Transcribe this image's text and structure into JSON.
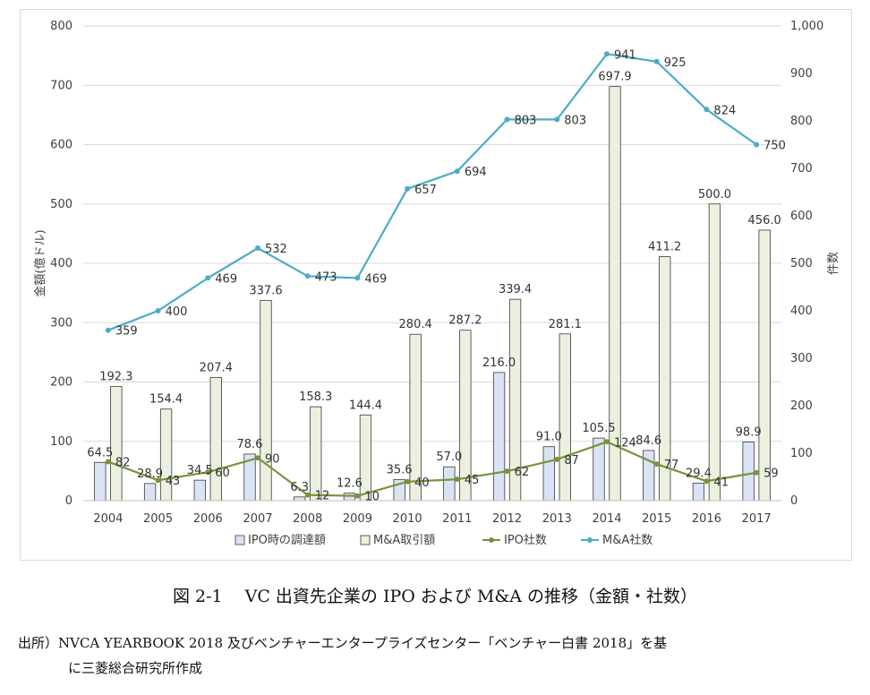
{
  "chart_data": {
    "type": "bar",
    "categories": [
      "2004",
      "2005",
      "2006",
      "2007",
      "2008",
      "2009",
      "2010",
      "2011",
      "2012",
      "2013",
      "2014",
      "2015",
      "2016",
      "2017"
    ],
    "series": [
      {
        "name": "IPO時の調達額",
        "kind": "bar",
        "axis": "left",
        "color": "#dae3f3",
        "values": [
          64.5,
          28.9,
          34.5,
          78.6,
          6.3,
          12.6,
          35.6,
          57.0,
          216.0,
          91.0,
          105.5,
          84.6,
          29.4,
          98.9
        ],
        "labels": [
          "64.5",
          "28.9",
          "34.5",
          "78.6",
          "6.3",
          "12.6",
          "35.6",
          "57.0",
          "216.0",
          "91.0",
          "105.5",
          "84.6",
          "29.4",
          "98.9"
        ]
      },
      {
        "name": "M&A取引額",
        "kind": "bar",
        "axis": "left",
        "color": "#ebf1de",
        "values": [
          192.3,
          154.4,
          207.4,
          337.6,
          158.3,
          144.4,
          280.4,
          287.2,
          339.4,
          281.1,
          697.9,
          411.2,
          500.0,
          456.0
        ],
        "labels": [
          "192.3",
          "154.4",
          "207.4",
          "337.6",
          "158.3",
          "144.4",
          "280.4",
          "287.2",
          "339.4",
          "281.1",
          "697.9",
          "411.2",
          "500.0",
          "456.0"
        ]
      },
      {
        "name": "IPO社数",
        "kind": "line",
        "axis": "right",
        "color": "#77933c",
        "values": [
          82,
          43,
          60,
          90,
          12,
          10,
          40,
          45,
          62,
          87,
          124,
          77,
          41,
          59
        ],
        "labels": [
          "82",
          "43",
          "60",
          "90",
          "12",
          "10",
          "40",
          "45",
          "62",
          "87",
          "124",
          "77",
          "41",
          "59"
        ]
      },
      {
        "name": "M&A社数",
        "kind": "line",
        "axis": "right",
        "color": "#4bacc6",
        "values": [
          359,
          400,
          469,
          532,
          473,
          469,
          657,
          694,
          803,
          803,
          941,
          925,
          824,
          750
        ],
        "labels": [
          "359",
          "400",
          "469",
          "532",
          "473",
          "469",
          "657",
          "694",
          "803",
          "803",
          "941",
          "925",
          "824",
          "750"
        ]
      }
    ],
    "ylabel": "金額(億ドル)",
    "y2label": "件数",
    "ylim": [
      0,
      800
    ],
    "y2lim": [
      0,
      1000
    ],
    "yticks": [
      "0",
      "100",
      "200",
      "300",
      "400",
      "500",
      "600",
      "700",
      "800"
    ],
    "y2ticks": [
      "0",
      "100",
      "200",
      "300",
      "400",
      "500",
      "600",
      "700",
      "800",
      "900",
      "1,000"
    ],
    "grid": true,
    "legend": "bottom"
  },
  "caption": "図 2-1　 VC 出資先企業の IPO および M&A の推移（金額・社数）",
  "source_line1": "出所）NVCA YEARBOOK 2018 及びベンチャーエンタープライズセンター「ベンチャー白書 2018」を基",
  "source_line2": "に三菱総合研究所作成"
}
